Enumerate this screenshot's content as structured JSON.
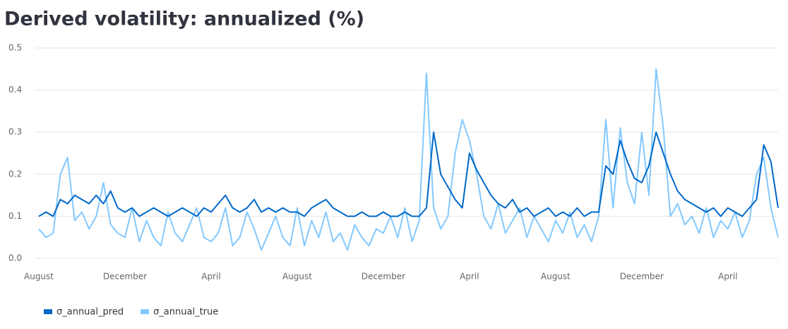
{
  "chart_data": {
    "type": "line",
    "title": "Derived volatility: annualized (%)",
    "categories": [
      "August",
      null,
      null,
      null,
      null,
      null,
      null,
      null,
      null,
      null,
      null,
      null,
      "December",
      null,
      null,
      null,
      null,
      null,
      null,
      null,
      null,
      null,
      null,
      null,
      "April",
      null,
      null,
      null,
      null,
      null,
      null,
      null,
      null,
      null,
      null,
      null,
      "August",
      null,
      null,
      null,
      null,
      null,
      null,
      null,
      null,
      null,
      null,
      null,
      "December",
      null,
      null,
      null,
      null,
      null,
      null,
      null,
      null,
      null,
      null,
      null,
      "April",
      null,
      null,
      null,
      null,
      null,
      null,
      null,
      null,
      null,
      null,
      null,
      "August",
      null,
      null,
      null,
      null,
      null,
      null,
      null,
      null,
      null,
      null,
      null,
      "December",
      null,
      null,
      null,
      null,
      null,
      null,
      null,
      null,
      null,
      null,
      null,
      "April",
      null,
      null,
      null,
      null,
      null,
      null,
      null
    ],
    "series": [
      {
        "name": "σ_annual_pred",
        "color": "#0068c9",
        "values": [
          0.1,
          0.11,
          0.1,
          0.14,
          0.13,
          0.15,
          0.14,
          0.13,
          0.15,
          0.13,
          0.16,
          0.12,
          0.11,
          0.12,
          0.1,
          0.11,
          0.12,
          0.11,
          0.1,
          0.11,
          0.12,
          0.11,
          0.1,
          0.12,
          0.11,
          0.13,
          0.15,
          0.12,
          0.11,
          0.12,
          0.14,
          0.11,
          0.12,
          0.11,
          0.12,
          0.11,
          0.11,
          0.1,
          0.12,
          0.13,
          0.14,
          0.12,
          0.11,
          0.1,
          0.1,
          0.11,
          0.1,
          0.1,
          0.11,
          0.1,
          0.1,
          0.11,
          0.1,
          0.1,
          0.12,
          0.3,
          0.2,
          0.17,
          0.14,
          0.12,
          0.25,
          0.21,
          0.18,
          0.15,
          0.13,
          0.12,
          0.14,
          0.11,
          0.12,
          0.1,
          0.11,
          0.12,
          0.1,
          0.11,
          0.1,
          0.12,
          0.1,
          0.11,
          0.11,
          0.22,
          0.2,
          0.28,
          0.23,
          0.19,
          0.18,
          0.22,
          0.3,
          0.25,
          0.2,
          0.16,
          0.14,
          0.13,
          0.12,
          0.11,
          0.12,
          0.1,
          0.12,
          0.11,
          0.1,
          0.12,
          0.14,
          0.27,
          0.23,
          0.12
        ]
      },
      {
        "name": "σ_annual_true",
        "color": "#83c9ff",
        "values": [
          0.07,
          0.05,
          0.06,
          0.2,
          0.24,
          0.09,
          0.11,
          0.07,
          0.1,
          0.18,
          0.08,
          0.06,
          0.05,
          0.12,
          0.04,
          0.09,
          0.05,
          0.03,
          0.11,
          0.06,
          0.04,
          0.08,
          0.12,
          0.05,
          0.04,
          0.06,
          0.12,
          0.03,
          0.05,
          0.11,
          0.07,
          0.02,
          0.06,
          0.1,
          0.05,
          0.03,
          0.12,
          0.03,
          0.09,
          0.05,
          0.11,
          0.04,
          0.06,
          0.02,
          0.08,
          0.05,
          0.03,
          0.07,
          0.06,
          0.1,
          0.05,
          0.12,
          0.04,
          0.09,
          0.44,
          0.12,
          0.07,
          0.1,
          0.25,
          0.33,
          0.28,
          0.2,
          0.1,
          0.07,
          0.13,
          0.06,
          0.09,
          0.12,
          0.05,
          0.1,
          0.07,
          0.04,
          0.09,
          0.06,
          0.11,
          0.05,
          0.08,
          0.04,
          0.1,
          0.33,
          0.12,
          0.31,
          0.18,
          0.13,
          0.3,
          0.15,
          0.45,
          0.31,
          0.1,
          0.13,
          0.08,
          0.1,
          0.06,
          0.12,
          0.05,
          0.09,
          0.07,
          0.11,
          0.05,
          0.09,
          0.2,
          0.24,
          0.12,
          0.05
        ]
      }
    ],
    "ylim": [
      0,
      0.5
    ],
    "yticks": [
      {
        "value": 0,
        "label": "0.0"
      },
      0.1,
      0.2,
      0.3,
      0.4,
      0.5
    ],
    "grid": true
  }
}
